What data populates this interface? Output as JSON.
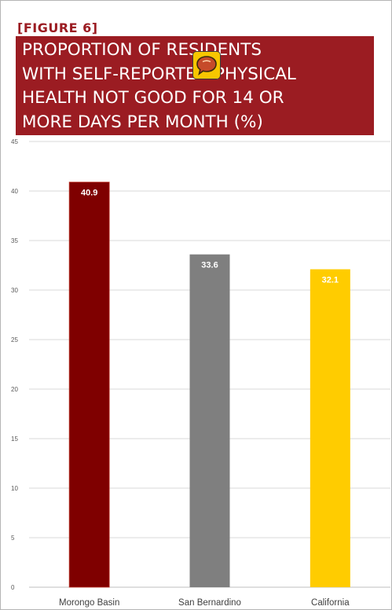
{
  "figure_label": "[FIGURE 6]",
  "title": "PROPORTION OF RESIDENTS\nWITH SELF-REPORTED PHYSICAL\nHEALTH NOT GOOD FOR 14 OR\nMORE DAYS PER MONTH (%)",
  "icons": {
    "badge": "speech-bubble-icon"
  },
  "colors": {
    "title_bg": "#9b1c22",
    "grid": "#d9d9d9",
    "badge": "#f7c600"
  },
  "chart_data": {
    "type": "bar",
    "title": "PROPORTION OF RESIDENTS WITH SELF-REPORTED PHYSICAL HEALTH NOT GOOD FOR 14 OR MORE DAYS PER MONTH (%)",
    "categories": [
      "Morongo Basin",
      "San Bernardino",
      "California"
    ],
    "values": [
      40.9,
      33.6,
      32.1
    ],
    "data_labels": [
      "40.9",
      "33.6",
      "32.1"
    ],
    "bar_colors": [
      "#7f0000",
      "#7f7f7f",
      "#ffcc00"
    ],
    "ylim": [
      0,
      45
    ],
    "yticks": [
      0,
      5,
      10,
      15,
      20,
      25,
      30,
      35,
      40,
      45
    ],
    "grid": true,
    "xlabel": "",
    "ylabel": ""
  }
}
